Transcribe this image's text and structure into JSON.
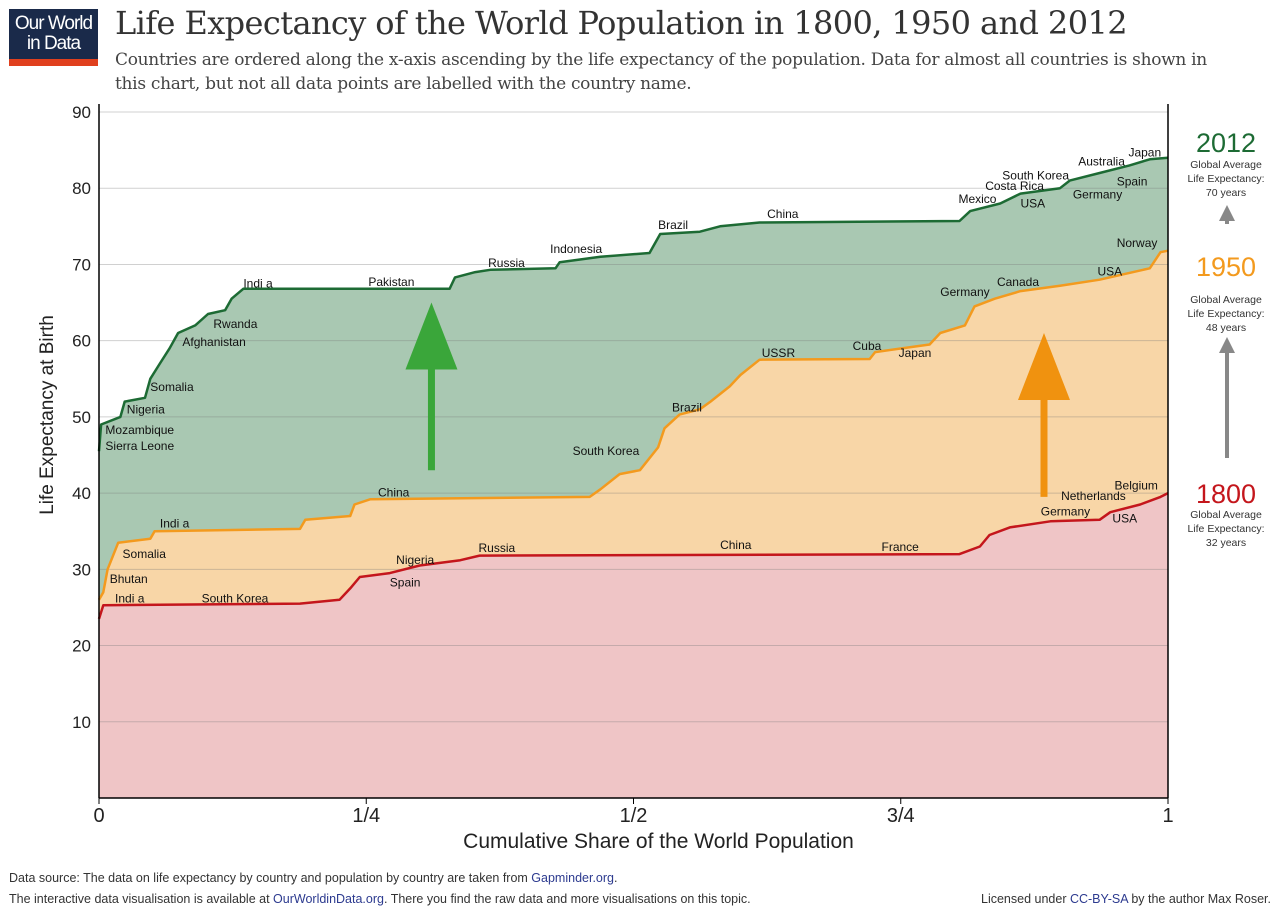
{
  "logo": {
    "line1": "Our World",
    "line2": "in Data"
  },
  "title": "Life Expectancy of the World Population in 1800, 1950 and 2012",
  "subtitle": "Countries are ordered along the x-axis ascending by the life expectancy of the population. Data for almost all countries is shown in this chart, but not all data points are labelled with the country name.",
  "footer": {
    "source_prefix": "Data source: The data on life expectancy by country and population by country are taken from ",
    "source_link": "Gapminder.org",
    "source_suffix": ".",
    "interactive_prefix": "The interactive data visualisation is available at ",
    "interactive_link": "OurWorldinData.org",
    "interactive_suffix": ". There you find the raw data and more visualisations on this topic.",
    "license_prefix": "Licensed under ",
    "license_link": "CC-BY-SA",
    "license_suffix": " by the author Max Roser."
  },
  "chart_data": {
    "type": "area",
    "xlabel": "Cumulative Share of the World Population",
    "ylabel": "Life Expectancy at Birth",
    "xlim": [
      0,
      1
    ],
    "ylim": [
      0,
      90
    ],
    "x_ticks": [
      {
        "value": 0,
        "label": "0"
      },
      {
        "value": 0.25,
        "label": "1/4"
      },
      {
        "value": 0.5,
        "label": "1/2"
      },
      {
        "value": 0.75,
        "label": "3/4"
      },
      {
        "value": 1,
        "label": "1"
      }
    ],
    "y_ticks": [
      10,
      20,
      30,
      40,
      50,
      60,
      70,
      80,
      90
    ],
    "grid": true,
    "series": [
      {
        "name": "2012",
        "color": "#1d6b34",
        "fill": "#a9c8b2",
        "avg_label": "Global Average Life Expectancy:",
        "avg_value": "70 years",
        "points": [
          [
            0,
            45.5
          ],
          [
            0.002,
            49
          ],
          [
            0.02,
            50
          ],
          [
            0.024,
            52
          ],
          [
            0.043,
            52.5
          ],
          [
            0.048,
            55
          ],
          [
            0.057,
            57
          ],
          [
            0.066,
            59
          ],
          [
            0.074,
            61
          ],
          [
            0.09,
            62
          ],
          [
            0.102,
            63.5
          ],
          [
            0.118,
            64
          ],
          [
            0.124,
            65.5
          ],
          [
            0.135,
            66.8
          ],
          [
            0.328,
            66.8
          ],
          [
            0.333,
            68.3
          ],
          [
            0.352,
            69
          ],
          [
            0.366,
            69.3
          ],
          [
            0.427,
            69.5
          ],
          [
            0.431,
            70.3
          ],
          [
            0.469,
            71
          ],
          [
            0.515,
            71.5
          ],
          [
            0.525,
            74
          ],
          [
            0.562,
            74.3
          ],
          [
            0.581,
            75
          ],
          [
            0.618,
            75.5
          ],
          [
            0.805,
            75.7
          ],
          [
            0.815,
            77
          ],
          [
            0.843,
            78
          ],
          [
            0.862,
            79.3
          ],
          [
            0.899,
            80
          ],
          [
            0.908,
            81
          ],
          [
            0.936,
            82
          ],
          [
            0.964,
            83
          ],
          [
            0.983,
            83.8
          ],
          [
            1,
            84
          ]
        ],
        "labels": [
          [
            "Mozambique",
            0.006,
            48.3
          ],
          [
            "Sierra Leone",
            0.006,
            46.2
          ],
          [
            "Nigeria",
            0.026,
            51
          ],
          [
            "Somalia",
            0.048,
            53.9
          ],
          [
            "Afghanistan",
            0.078,
            59.8
          ],
          [
            "Rwanda",
            0.107,
            62.2
          ],
          [
            "Indi a",
            0.135,
            67.5
          ],
          [
            "Pakistan",
            0.252,
            67.7
          ],
          [
            "Russia",
            0.364,
            70.2
          ],
          [
            "Indonesia",
            0.422,
            72
          ],
          [
            "Brazil",
            0.523,
            75.2
          ],
          [
            "China",
            0.625,
            76.6
          ],
          [
            "Mexico",
            0.804,
            78.6
          ],
          [
            "Costa Rica",
            0.829,
            80.3
          ],
          [
            "South Korea",
            0.845,
            81.7
          ],
          [
            "USA",
            0.862,
            78
          ],
          [
            "Australia",
            0.916,
            83.5
          ],
          [
            "Japan",
            0.963,
            84.7
          ],
          [
            "Spain",
            0.952,
            80.9
          ],
          [
            "Germany",
            0.911,
            79.2
          ],
          [
            "Norway",
            0.952,
            72.8
          ]
        ]
      },
      {
        "name": "1950",
        "color": "#f39a1e",
        "fill": "#f8d6a7",
        "avg_label": "Global Average Life Expectancy:",
        "avg_value": "48 years",
        "points": [
          [
            0,
            26
          ],
          [
            0.004,
            27
          ],
          [
            0.008,
            30
          ],
          [
            0.018,
            33.5
          ],
          [
            0.048,
            34
          ],
          [
            0.052,
            35
          ],
          [
            0.188,
            35.3
          ],
          [
            0.193,
            36.5
          ],
          [
            0.235,
            37
          ],
          [
            0.239,
            38.5
          ],
          [
            0.254,
            39.2
          ],
          [
            0.459,
            39.5
          ],
          [
            0.469,
            40.5
          ],
          [
            0.487,
            42.5
          ],
          [
            0.506,
            43
          ],
          [
            0.523,
            46
          ],
          [
            0.529,
            48.5
          ],
          [
            0.543,
            50.3
          ],
          [
            0.562,
            51
          ],
          [
            0.572,
            52
          ],
          [
            0.59,
            54
          ],
          [
            0.6,
            55.5
          ],
          [
            0.618,
            57.5
          ],
          [
            0.721,
            57.6
          ],
          [
            0.726,
            58.5
          ],
          [
            0.777,
            59.5
          ],
          [
            0.787,
            61
          ],
          [
            0.81,
            62
          ],
          [
            0.819,
            64.5
          ],
          [
            0.838,
            65.5
          ],
          [
            0.862,
            66.5
          ],
          [
            0.899,
            67.2
          ],
          [
            0.936,
            68
          ],
          [
            0.983,
            69.5
          ],
          [
            0.993,
            71.6
          ],
          [
            1,
            71.8
          ]
        ],
        "labels": [
          [
            "Indi a",
            0.057,
            36
          ],
          [
            "Somalia",
            0.022,
            32
          ],
          [
            "Bhutan",
            0.01,
            28.7
          ],
          [
            "China",
            0.261,
            40.1
          ],
          [
            "South Korea",
            0.443,
            45.5
          ],
          [
            "Brazil",
            0.536,
            51.2
          ],
          [
            "USSR",
            0.62,
            58.4
          ],
          [
            "Cuba",
            0.705,
            59.3
          ],
          [
            "Japan",
            0.748,
            58.4
          ],
          [
            "Germany",
            0.787,
            66.4
          ],
          [
            "Canada",
            0.84,
            67.7
          ],
          [
            "USA",
            0.934,
            69.1
          ]
        ]
      },
      {
        "name": "1800",
        "color": "#c4161c",
        "fill": "#efc5c6",
        "avg_label": "Global Average Life Expectancy:",
        "avg_value": "32 years",
        "points": [
          [
            0,
            23.5
          ],
          [
            0.004,
            25.3
          ],
          [
            0.188,
            25.5
          ],
          [
            0.225,
            26
          ],
          [
            0.235,
            27.5
          ],
          [
            0.244,
            29
          ],
          [
            0.272,
            29.5
          ],
          [
            0.3,
            30.5
          ],
          [
            0.338,
            31.2
          ],
          [
            0.356,
            31.8
          ],
          [
            0.805,
            32
          ],
          [
            0.824,
            33
          ],
          [
            0.833,
            34.5
          ],
          [
            0.852,
            35.5
          ],
          [
            0.89,
            36.3
          ],
          [
            0.936,
            36.5
          ],
          [
            0.946,
            37.5
          ],
          [
            0.974,
            38.5
          ],
          [
            0.993,
            39.5
          ],
          [
            1,
            40
          ]
        ],
        "labels": [
          [
            "Indi a",
            0.015,
            26.2
          ],
          [
            "South Korea",
            0.096,
            26.2
          ],
          [
            "Nigeria",
            0.278,
            31.2
          ],
          [
            "Spain",
            0.272,
            28.3
          ],
          [
            "Russia",
            0.355,
            32.8
          ],
          [
            "China",
            0.581,
            33.2
          ],
          [
            "France",
            0.732,
            32.9
          ],
          [
            "Germany",
            0.881,
            37.6
          ],
          [
            "Netherlands",
            0.9,
            39.6
          ],
          [
            "Belgium",
            0.95,
            41
          ],
          [
            "USA",
            0.948,
            36.7
          ]
        ]
      }
    ],
    "arrows": [
      {
        "color": "#3aa63a",
        "x": 0.311,
        "from": 43,
        "to": 65
      },
      {
        "color": "#f0920f",
        "x": 0.884,
        "from": 39.5,
        "to": 61
      }
    ]
  }
}
